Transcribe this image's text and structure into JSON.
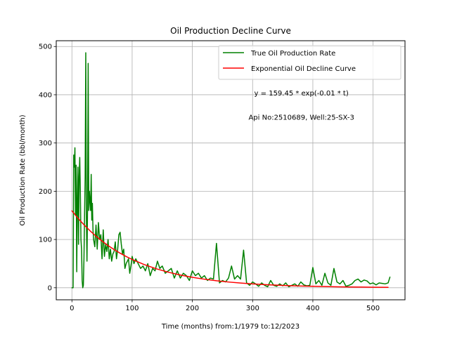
{
  "chart_data": {
    "type": "line",
    "title": "Oil Production Decline Curve",
    "xlabel": "Time (months) from:1/1979 to:12/2023",
    "ylabel": "Oil Production Rate (bbl/month)",
    "xlim": [
      -26,
      553
    ],
    "ylim": [
      -25,
      512
    ],
    "xticks": [
      0,
      100,
      200,
      300,
      400,
      500
    ],
    "yticks": [
      0,
      100,
      200,
      300,
      400,
      500
    ],
    "grid": true,
    "legend_position": "top-right",
    "annotations": [
      "y = 159.45 * exp(-0.01 * t)",
      "Api No:2510689, Well:25-SX-3"
    ],
    "series": [
      {
        "name": "True Oil Production Rate",
        "color": "#008000",
        "x": [
          0,
          2,
          3,
          4,
          5,
          6,
          7,
          8,
          9,
          10,
          11,
          12,
          13,
          14,
          15,
          16,
          17,
          18,
          19,
          20,
          21,
          22,
          23,
          24,
          25,
          26,
          27,
          28,
          29,
          30,
          31,
          32,
          33,
          34,
          35,
          36,
          38,
          40,
          42,
          44,
          46,
          48,
          50,
          52,
          54,
          56,
          58,
          60,
          62,
          64,
          66,
          68,
          70,
          72,
          74,
          76,
          78,
          80,
          82,
          84,
          86,
          88,
          90,
          92,
          94,
          96,
          98,
          100,
          103,
          106,
          110,
          114,
          118,
          122,
          126,
          130,
          134,
          138,
          142,
          146,
          150,
          155,
          160,
          165,
          170,
          175,
          180,
          185,
          190,
          195,
          200,
          205,
          210,
          215,
          220,
          225,
          230,
          235,
          240,
          245,
          250,
          255,
          260,
          265,
          270,
          275,
          280,
          285,
          290,
          295,
          300,
          305,
          310,
          315,
          320,
          325,
          330,
          335,
          340,
          345,
          350,
          355,
          360,
          365,
          370,
          375,
          380,
          385,
          390,
          395,
          400,
          405,
          410,
          415,
          420,
          425,
          430,
          435,
          440,
          445,
          450,
          455,
          460,
          465,
          470,
          475,
          480,
          485,
          490,
          495,
          500,
          505,
          510,
          515,
          520,
          525,
          528
        ],
        "y": [
          0,
          0,
          275,
          250,
          290,
          150,
          254,
          33,
          180,
          250,
          90,
          230,
          270,
          200,
          100,
          80,
          15,
          0,
          5,
          60,
          150,
          230,
          487,
          150,
          55,
          170,
          465,
          160,
          200,
          180,
          160,
          235,
          140,
          175,
          120,
          100,
          85,
          130,
          80,
          135,
          100,
          110,
          60,
          120,
          65,
          90,
          75,
          100,
          60,
          80,
          55,
          70,
          75,
          95,
          60,
          80,
          110,
          115,
          90,
          70,
          80,
          40,
          50,
          55,
          60,
          30,
          45,
          65,
          50,
          60,
          50,
          40,
          45,
          35,
          50,
          25,
          40,
          35,
          55,
          40,
          45,
          30,
          35,
          40,
          20,
          35,
          20,
          30,
          25,
          15,
          35,
          25,
          30,
          20,
          25,
          15,
          20,
          18,
          92,
          10,
          15,
          12,
          20,
          45,
          18,
          25,
          18,
          78,
          10,
          5,
          12,
          8,
          3,
          10,
          5,
          2,
          15,
          5,
          3,
          8,
          4,
          10,
          2,
          5,
          8,
          3,
          12,
          6,
          4,
          5,
          42,
          8,
          15,
          5,
          30,
          10,
          5,
          40,
          12,
          8,
          15,
          3,
          5,
          8,
          15,
          18,
          12,
          16,
          14,
          8,
          10,
          6,
          10,
          9,
          8,
          10,
          22
        ]
      },
      {
        "name": "Exponential Oil Decline Curve",
        "color": "#ff0000",
        "x": [
          0,
          10,
          20,
          30,
          40,
          50,
          60,
          70,
          80,
          90,
          100,
          120,
          140,
          160,
          180,
          200,
          220,
          240,
          260,
          280,
          300,
          320,
          340,
          360,
          380,
          400,
          420,
          440,
          460,
          480,
          500,
          525
        ],
        "y": [
          159.45,
          144.28,
          130.54,
          118.12,
          106.88,
          96.71,
          87.5,
          79.17,
          71.64,
          64.82,
          58.66,
          48.02,
          39.32,
          32.19,
          26.35,
          21.58,
          17.67,
          14.46,
          11.84,
          9.7,
          7.94,
          6.5,
          5.32,
          4.36,
          3.57,
          2.92,
          2.39,
          1.96,
          1.6,
          1.31,
          1.07,
          0.84
        ]
      }
    ]
  }
}
